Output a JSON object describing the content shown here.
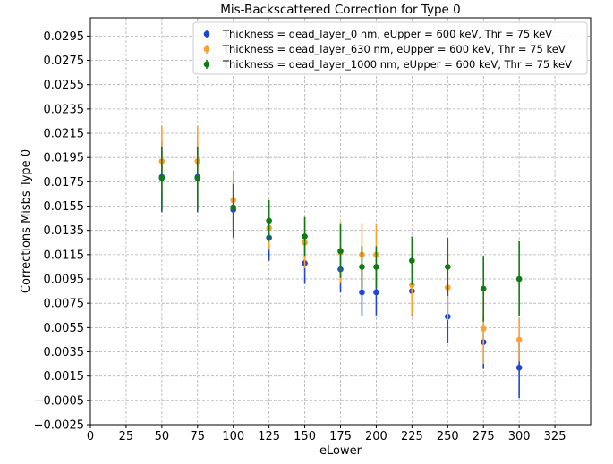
{
  "chart_data": {
    "type": "scatter",
    "title": "Mis-Backscattered Correction for Type 0",
    "xlabel": "eLower",
    "ylabel": "Corrections Misbs Type 0",
    "xlim": [
      0,
      350
    ],
    "ylim": [
      -0.0025,
      0.031
    ],
    "x_ticks": [
      0,
      25,
      50,
      75,
      100,
      125,
      150,
      175,
      200,
      225,
      250,
      275,
      300,
      325
    ],
    "x_tick_labels": [
      "0",
      "25",
      "50",
      "75",
      "100",
      "125",
      "150",
      "175",
      "200",
      "225",
      "250",
      "275",
      "300",
      "325"
    ],
    "y_ticks": [
      -0.0025,
      -0.0005,
      0.0015,
      0.0035,
      0.0055,
      0.0075,
      0.0095,
      0.0115,
      0.0135,
      0.0155,
      0.0175,
      0.0195,
      0.0215,
      0.0235,
      0.0255,
      0.0275,
      0.0295
    ],
    "y_tick_labels": [
      "−0.0025",
      "−0.0005",
      "0.0015",
      "0.0035",
      "0.0055",
      "0.0075",
      "0.0095",
      "0.0115",
      "0.0135",
      "0.0155",
      "0.0175",
      "0.0195",
      "0.0215",
      "0.0235",
      "0.0255",
      "0.0275",
      "0.0295"
    ],
    "grid": true,
    "legend_position": "top-right",
    "x": [
      50,
      75,
      100,
      125,
      150,
      175,
      190,
      200,
      225,
      250,
      275,
      300
    ],
    "series": [
      {
        "name": "Thickness = dead_layer_0 nm, eUpper = 600 keV, Thr = 75 keV",
        "color": "#1f44d6",
        "values": [
          0.0179,
          0.0179,
          0.0152,
          0.0129,
          0.0108,
          0.0103,
          0.0084,
          0.0084,
          0.0085,
          0.0064,
          0.0043,
          0.0022
        ],
        "errors": [
          0.0029,
          0.0029,
          0.0023,
          0.0019,
          0.0017,
          0.0019,
          0.0019,
          0.0019,
          0.0021,
          0.0022,
          0.0022,
          0.0025
        ]
      },
      {
        "name": "Thickness = dead_layer_630 nm, eUpper = 600 keV, Thr = 75 keV",
        "color": "#ff9f2e",
        "values": [
          0.0192,
          0.0192,
          0.016,
          0.0137,
          0.0125,
          0.0117,
          0.0115,
          0.0115,
          0.009,
          0.0088,
          0.0054,
          0.0045
        ],
        "errors": [
          0.0029,
          0.0029,
          0.0024,
          0.0018,
          0.0021,
          0.0025,
          0.0026,
          0.0026,
          0.0025,
          0.0027,
          0.0029,
          0.0018
        ]
      },
      {
        "name": "Thickness = dead_layer_1000 nm, eUpper = 600 keV, Thr = 75 keV",
        "color": "#127a12",
        "values": [
          0.0178,
          0.0178,
          0.0154,
          0.0143,
          0.013,
          0.0118,
          0.0105,
          0.0105,
          0.011,
          0.0105,
          0.0087,
          0.0095
        ],
        "errors": [
          0.0026,
          0.0026,
          0.0019,
          0.0017,
          0.0016,
          0.0022,
          0.0017,
          0.0017,
          0.002,
          0.0024,
          0.0027,
          0.0031
        ]
      }
    ]
  }
}
